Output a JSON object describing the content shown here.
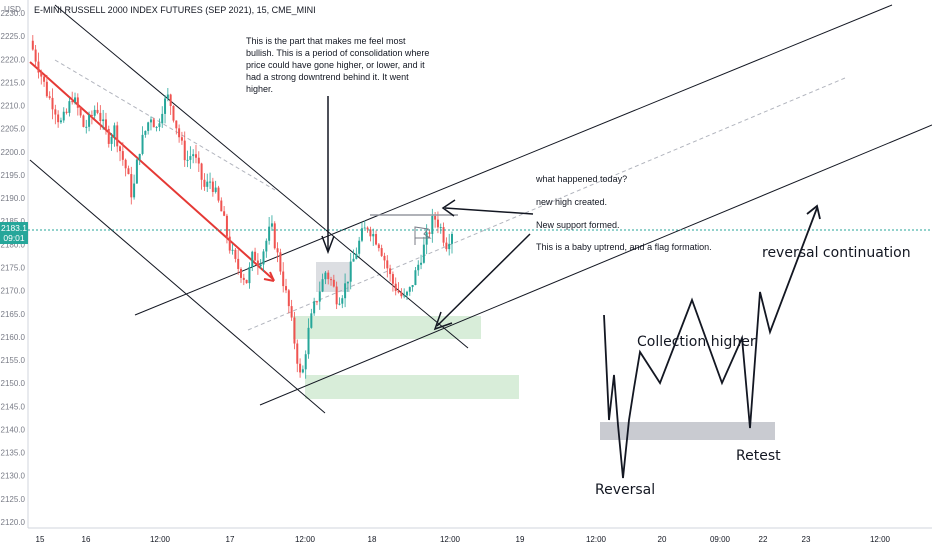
{
  "header": {
    "title": "E-MINI RUSSELL 2000 INDEX FUTURES (SEP 2021), 15, CME_MINI",
    "currency": "USD"
  },
  "price_tag": {
    "price": "2183.1",
    "countdown": "09:01"
  },
  "annotations": {
    "bullish_note": [
      "This is the part that makes me feel most",
      "bullish. This is a period of consolidation where",
      "price could have gone higher, or lower, and it",
      "had a strong downtrend behind it. It went",
      "higher."
    ],
    "today_note": {
      "line1": "what happened today?",
      "line2": "new high created.",
      "line3": "New support formed.",
      "line4": "This is a baby uptrend, and a flag formation."
    },
    "reversal_continuation": "reversal continuation",
    "collection_higher": "Collection higher",
    "reversal": "Reversal",
    "retest": "Retest"
  },
  "colors": {
    "up": "#26a69a",
    "down": "#ef5350",
    "trendline": "#131722",
    "red_line": "#e53935",
    "support_zone": "#c8e6c9",
    "retest_zone": "#b2b5be",
    "price_line": "#26a69a"
  },
  "chart_data": {
    "type": "candlestick",
    "symbol": "E-MINI RUSSELL 2000 INDEX FUTURES (SEP 2021)",
    "interval": "15",
    "ylim": [
      2118,
      2240
    ],
    "y_ticks": [
      2120,
      2125,
      2130,
      2135,
      2140,
      2145,
      2150,
      2155,
      2160,
      2165,
      2170,
      2175,
      2180,
      2185,
      2190,
      2195,
      2200,
      2205,
      2210,
      2215,
      2220,
      2225,
      2230
    ],
    "x_ticks": [
      "15",
      "16",
      "12:00",
      "17",
      "12:00",
      "18",
      "12:00",
      "19",
      "12:00",
      "20",
      "09:00",
      "22",
      "23",
      "12:00"
    ],
    "last_price": 2183.1,
    "ohlc_path": [
      2224,
      2220,
      2216,
      2212,
      2210,
      2206,
      2208,
      2212,
      2209,
      2205,
      2207,
      2210,
      2206,
      2203,
      2205,
      2200,
      2196,
      2190,
      2200,
      2204,
      2208,
      2205,
      2210,
      2212,
      2207,
      2202,
      2198,
      2200,
      2196,
      2192,
      2194,
      2190,
      2186,
      2180,
      2176,
      2174,
      2172,
      2178,
      2176,
      2180,
      2184,
      2178,
      2172,
      2166,
      2158,
      2150,
      2160,
      2166,
      2170,
      2174,
      2172,
      2168,
      2170,
      2174,
      2178,
      2182,
      2184,
      2182,
      2180,
      2176,
      2172,
      2170,
      2168,
      2170,
      2174,
      2178,
      2182,
      2186,
      2184,
      2180,
      2183
    ]
  }
}
